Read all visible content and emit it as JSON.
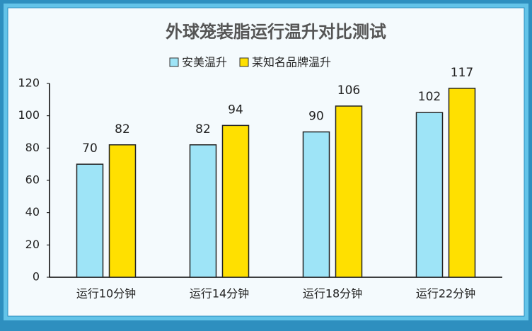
{
  "chart_data": {
    "type": "bar",
    "title": "外球笼装脂运行温升对比测试",
    "categories": [
      "运行10分钟",
      "运行14分钟",
      "运行18分钟",
      "运行22分钟"
    ],
    "series": [
      {
        "name": "安美温升",
        "color": "#9ee4f7",
        "values": [
          70,
          82,
          90,
          102
        ]
      },
      {
        "name": "某知名品牌温升",
        "color": "#ffe000",
        "values": [
          82,
          94,
          106,
          117
        ]
      }
    ],
    "ylim": [
      0,
      120
    ],
    "yticks": [
      0,
      20,
      40,
      60,
      80,
      100,
      120
    ],
    "grid": false,
    "legend": "top"
  }
}
